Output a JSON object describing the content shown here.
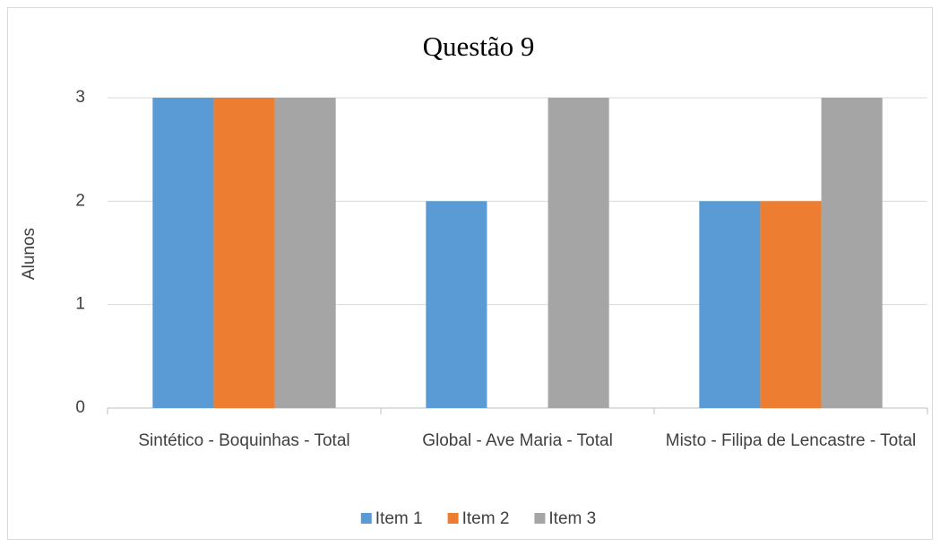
{
  "chart_data": {
    "type": "bar",
    "title": "Questão 9",
    "ylabel": "Alunos",
    "categories": [
      "Sintético - Boquinhas - Total",
      "Global - Ave Maria - Total",
      "Misto - Filipa de Lencastre - Total"
    ],
    "series": [
      {
        "name": "Item 1",
        "color": "#5b9bd5",
        "values": [
          3,
          2,
          2
        ]
      },
      {
        "name": "Item 2",
        "color": "#ed7d31",
        "values": [
          3,
          0,
          2
        ]
      },
      {
        "name": "Item 3",
        "color": "#a5a5a5",
        "values": [
          3,
          3,
          3
        ]
      }
    ],
    "ylim": [
      0,
      3
    ],
    "yticks": [
      0,
      1,
      2,
      3
    ],
    "grid": true,
    "legend": "bottom"
  }
}
